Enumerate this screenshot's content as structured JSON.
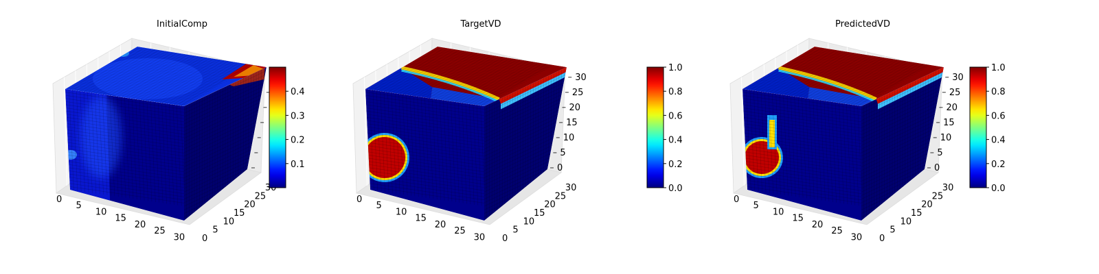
{
  "chart_data": [
    {
      "type": "heatmap",
      "title": "InitialComp",
      "xlabel": "",
      "ylabel": "",
      "zlabel": "",
      "xlim": [
        0,
        32
      ],
      "ylim": [
        0,
        32
      ],
      "zlim": [
        0,
        32
      ],
      "x_ticks": [
        "0",
        "5",
        "10",
        "15",
        "20",
        "25",
        "30"
      ],
      "y_ticks": [
        "0",
        "5",
        "10",
        "15",
        "20",
        "25",
        "30"
      ],
      "z_ticks": [],
      "colormap": "jet",
      "colorbar": {
        "min": 0.0,
        "max": 0.5,
        "tick_values": [
          0.1,
          0.2,
          0.3,
          0.4
        ],
        "tick_labels": [
          "0.1",
          "0.2",
          "0.3",
          "0.4"
        ]
      },
      "regions": [
        {
          "face": "top",
          "description": "light blue ~0.08 across top surface"
        },
        {
          "face": "top-right-corner",
          "value": 0.45
        },
        {
          "face": "front",
          "description": "lighter blue ~0.1 band on left, dark blue elsewhere"
        }
      ]
    },
    {
      "type": "heatmap",
      "title": "TargetVD",
      "xlabel": "",
      "ylabel": "",
      "zlabel": "",
      "xlim": [
        0,
        32
      ],
      "ylim": [
        0,
        32
      ],
      "zlim": [
        0,
        32
      ],
      "x_ticks": [
        "0",
        "5",
        "10",
        "15",
        "20",
        "25",
        "30"
      ],
      "y_ticks": [
        "0",
        "5",
        "10",
        "15",
        "20",
        "25",
        "30"
      ],
      "z_ticks": [
        "0",
        "5",
        "10",
        "15",
        "20",
        "25",
        "30"
      ],
      "colormap": "jet",
      "colorbar": {
        "min": 0.0,
        "max": 1.0,
        "tick_values": [
          0.0,
          0.2,
          0.4,
          0.6,
          0.8,
          1.0
        ],
        "tick_labels": [
          "0.0",
          "0.2",
          "0.4",
          "0.6",
          "0.8",
          "1.0"
        ]
      },
      "regions": [
        {
          "face": "top",
          "value": 1.0,
          "description": "high-value pool on top surface"
        },
        {
          "face": "front-left",
          "value": 1.0,
          "description": "round blob at lower left"
        }
      ]
    },
    {
      "type": "heatmap",
      "title": "PredictedVD",
      "xlabel": "",
      "ylabel": "",
      "zlabel": "",
      "xlim": [
        0,
        32
      ],
      "ylim": [
        0,
        32
      ],
      "zlim": [
        0,
        32
      ],
      "x_ticks": [
        "0",
        "5",
        "10",
        "15",
        "20",
        "25",
        "30"
      ],
      "y_ticks": [
        "0",
        "5",
        "10",
        "15",
        "20",
        "25",
        "30"
      ],
      "z_ticks": [
        "0",
        "5",
        "10",
        "15",
        "20",
        "25",
        "30"
      ],
      "colormap": "jet",
      "colorbar": {
        "min": 0.0,
        "max": 1.0,
        "tick_values": [
          0.0,
          0.2,
          0.4,
          0.6,
          0.8,
          1.0
        ],
        "tick_labels": [
          "0.0",
          "0.2",
          "0.4",
          "0.6",
          "0.8",
          "1.0"
        ]
      },
      "regions": [
        {
          "face": "top",
          "value": 1.0,
          "description": "high-value pool on top surface"
        },
        {
          "face": "front-left",
          "value": 1.0,
          "description": "blob at lower left with plume rising"
        }
      ]
    }
  ]
}
